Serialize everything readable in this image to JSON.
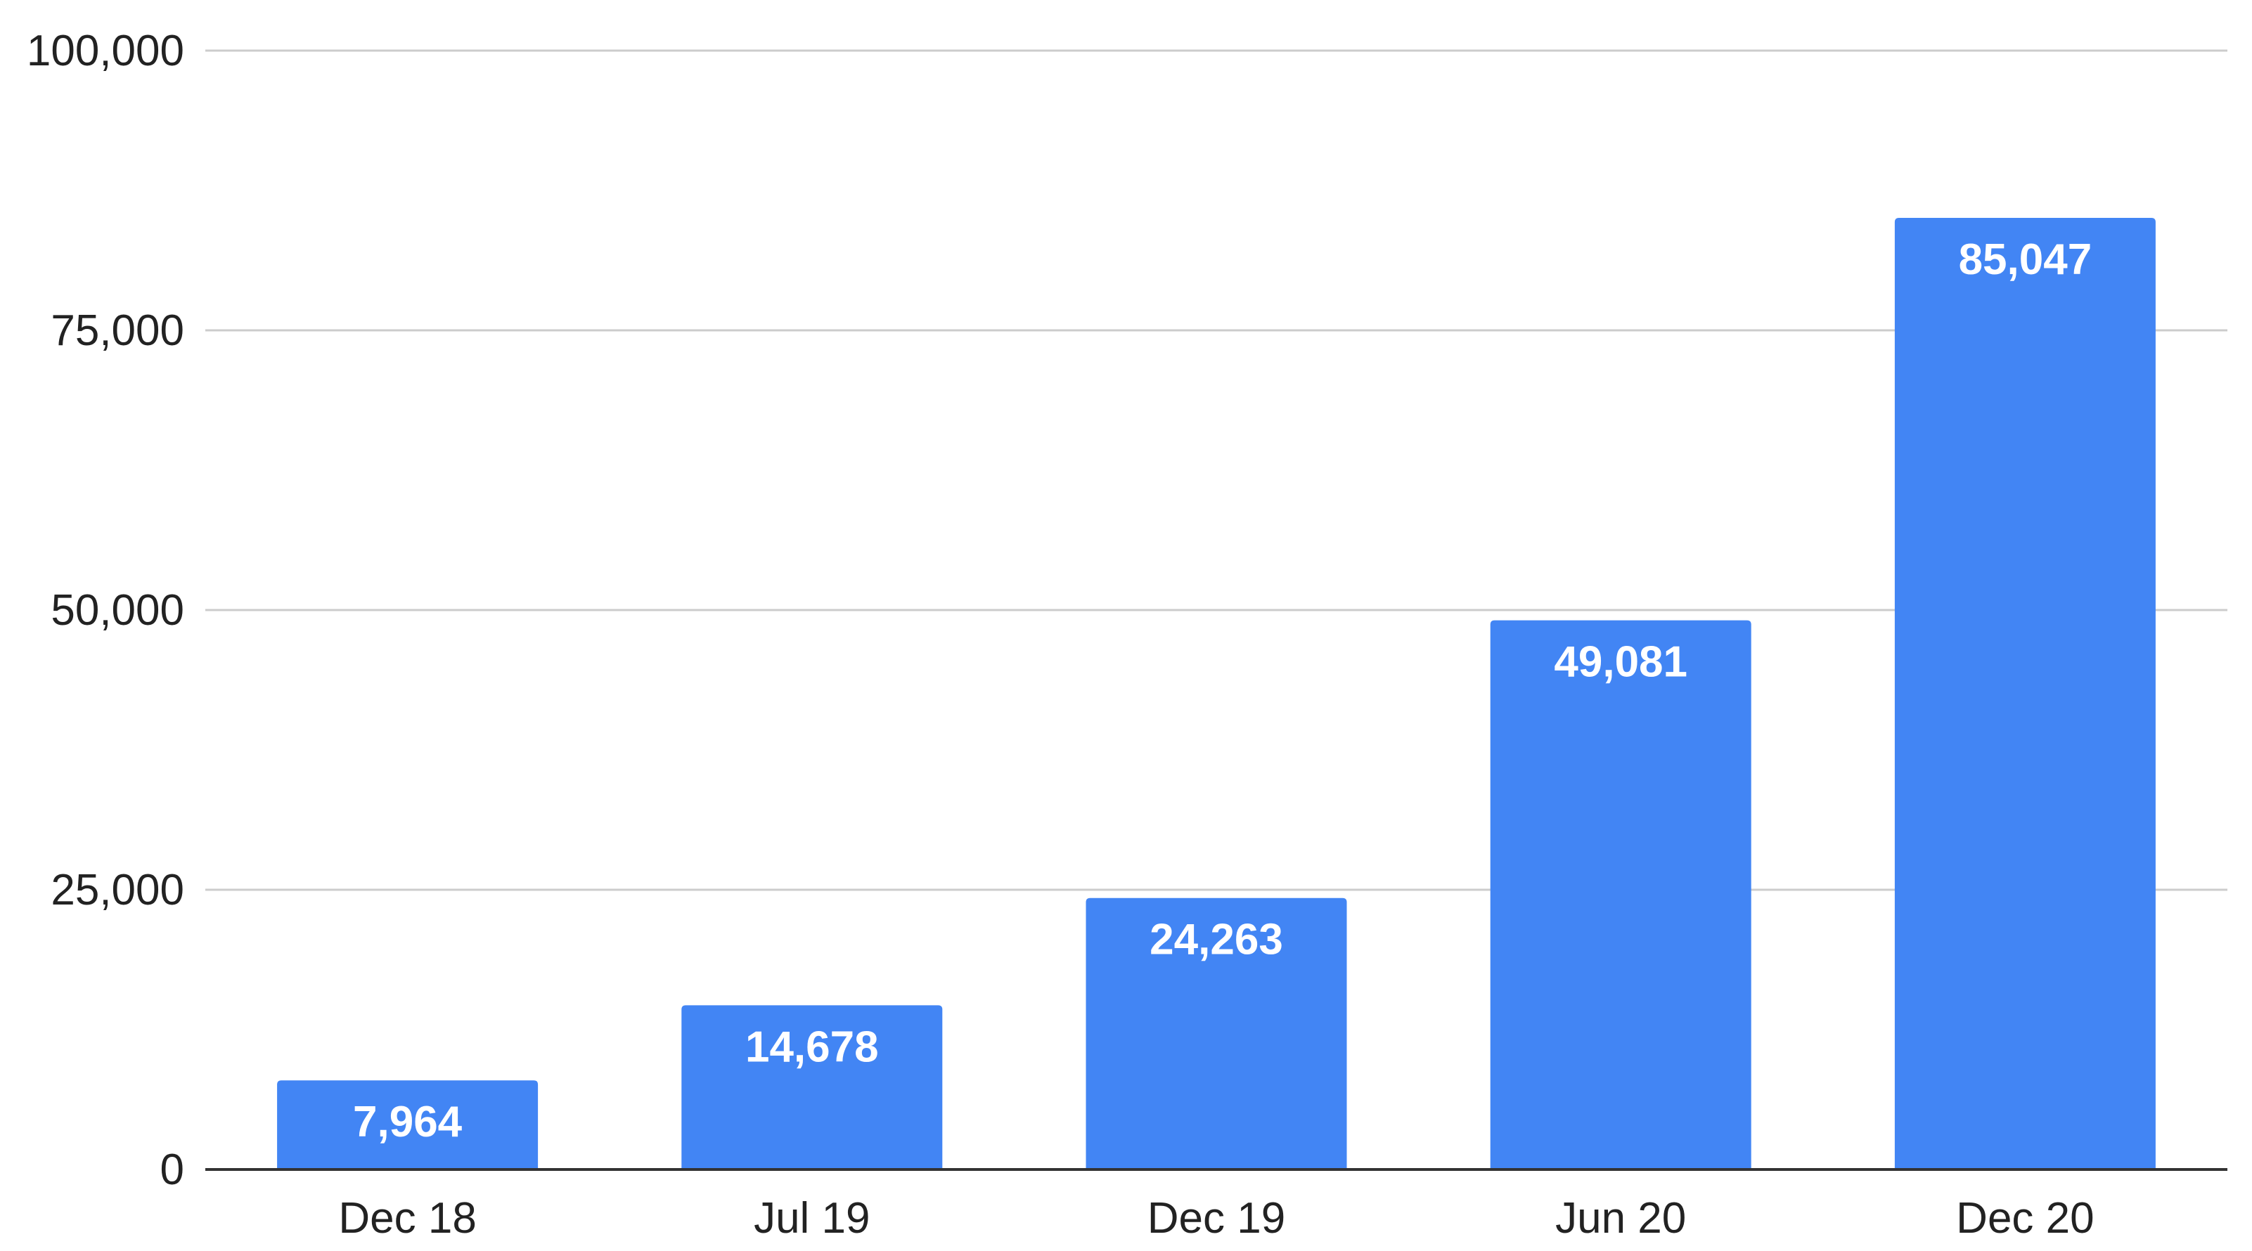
{
  "chart_data": {
    "type": "bar",
    "categories": [
      "Dec 18",
      "Jul 19",
      "Dec 19",
      "Jun 20",
      "Dec 20"
    ],
    "values": [
      7964,
      14678,
      24263,
      49081,
      85047
    ],
    "data_labels": [
      "7,964",
      "14,678",
      "24,263",
      "49,081",
      "85,047"
    ],
    "title": "",
    "xlabel": "",
    "ylabel": "",
    "ylim": [
      0,
      100000
    ],
    "y_ticks": [
      0,
      25000,
      50000,
      75000,
      100000
    ],
    "y_tick_labels": [
      "0",
      "25,000",
      "50,000",
      "75,000",
      "100,000"
    ],
    "grid": true,
    "legend": "none",
    "colors": {
      "bar": "#4285f4",
      "grid": "#cccccc",
      "axis": "#333333",
      "tick_text": "#222222",
      "label_text": "#ffffff"
    }
  }
}
